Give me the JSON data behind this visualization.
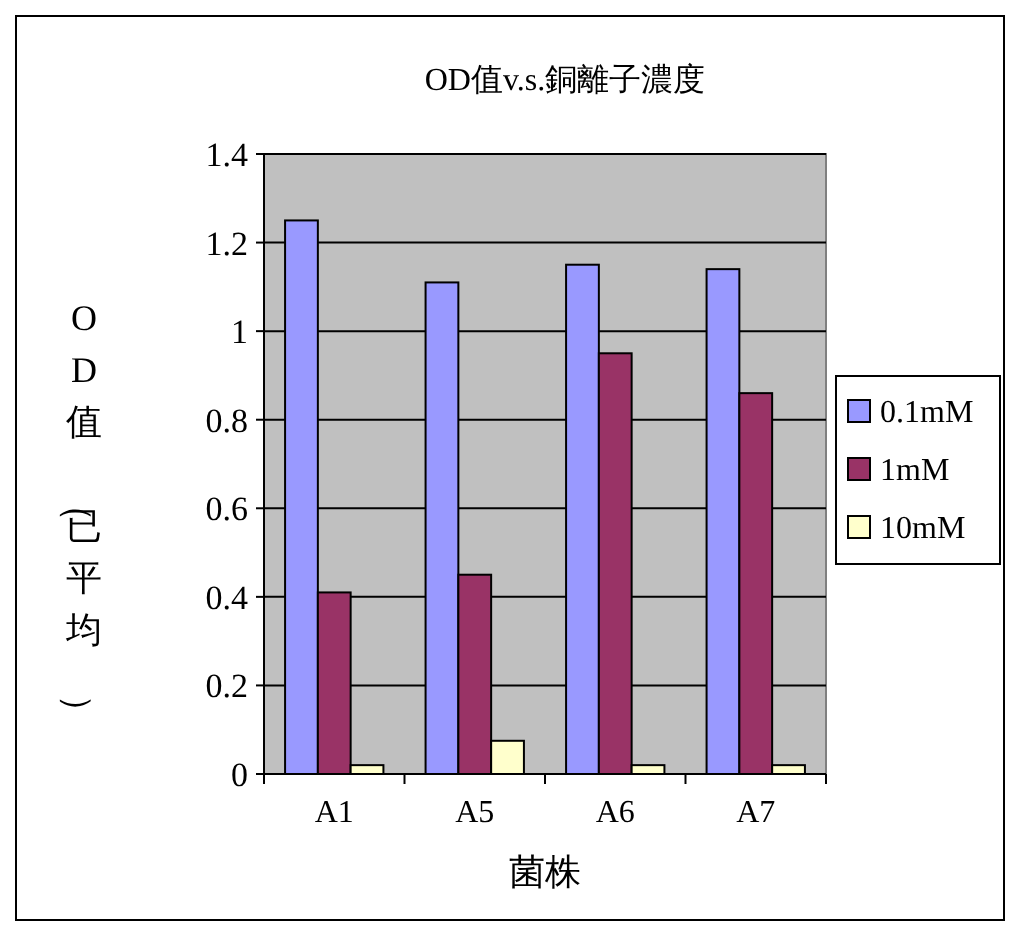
{
  "chart_data": {
    "type": "bar",
    "title": "OD值v.s.銅離子濃度",
    "xlabel": "菌株",
    "ylabel": "OD值（已平均）",
    "categories": [
      "A1",
      "A5",
      "A6",
      "A7"
    ],
    "series": [
      {
        "name": "0.1mM",
        "color": "#9999ff",
        "values": [
          1.25,
          1.11,
          1.15,
          1.14
        ]
      },
      {
        "name": "1mM",
        "color": "#993366",
        "values": [
          0.41,
          0.45,
          0.95,
          0.86
        ]
      },
      {
        "name": "10mM",
        "color": "#ffffcc",
        "values": [
          0.02,
          0.075,
          0.02,
          0.02
        ]
      }
    ],
    "ylim": [
      0,
      1.4
    ],
    "yticks": [
      0,
      0.2,
      0.4,
      0.6,
      0.8,
      1,
      1.2,
      1.4
    ],
    "grid": "y",
    "legend": "right"
  }
}
